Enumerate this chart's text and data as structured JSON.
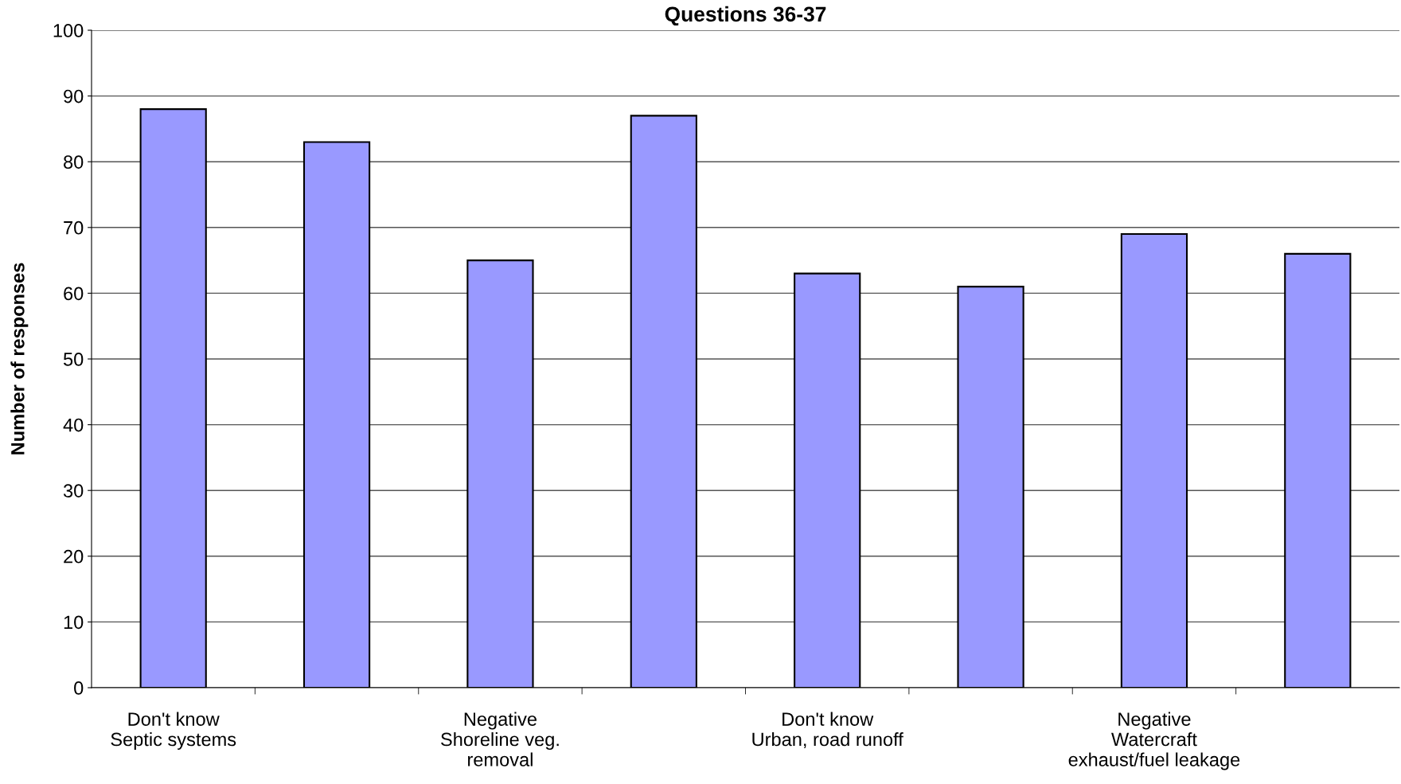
{
  "chart_data": {
    "type": "bar",
    "title": "Questions 36-37",
    "ylabel": "Number of responses",
    "categories": [
      "Don't know\nSeptic systems",
      null,
      "Negative\nShoreline veg.\nremoval",
      null,
      "Don't know\nUrban, road runoff",
      null,
      "Negative\nWatercraft\nexhaust/fuel leakage",
      null
    ],
    "values": [
      88,
      83,
      65,
      87,
      63,
      61,
      69,
      66
    ],
    "color": "#9999ff",
    "ylim": [
      0,
      100
    ],
    "yticks": [
      0,
      10,
      20,
      30,
      40,
      50,
      60,
      70,
      80,
      90,
      100
    ],
    "grid": "y"
  }
}
